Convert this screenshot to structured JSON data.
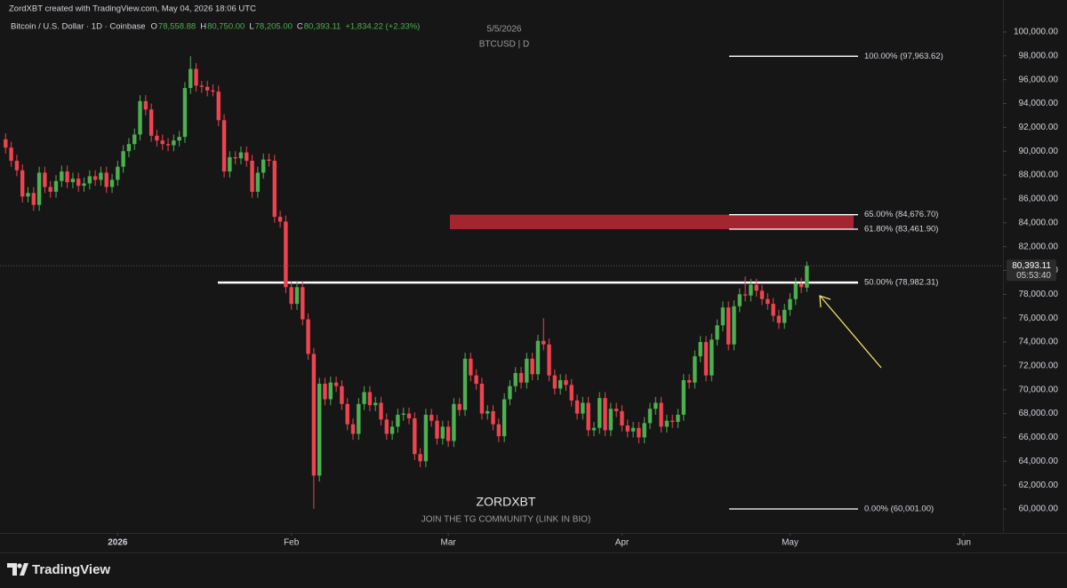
{
  "header": {
    "attribution": "ZordXBT created with TradingView.com, May 04, 2026 18:06 UTC",
    "symbol": "Bitcoin / U.S. Dollar · 1D · Coinbase",
    "ohlc": [
      {
        "key": "O",
        "value": "78,558.88"
      },
      {
        "key": "H",
        "value": "80,750.00"
      },
      {
        "key": "L",
        "value": "78,205.00"
      },
      {
        "key": "C",
        "value": "80,393.11"
      }
    ],
    "change": "+1,834.22 (+2.33%)"
  },
  "watermark": {
    "date": "5/5/2026",
    "symbol": "BTCUSD | D",
    "brand": "ZORDXBT",
    "note": "JOIN THE TG COMMUNITY (LINK IN BIO)"
  },
  "footer": {
    "logo": "TradingView"
  },
  "chart_data": {
    "type": "candlestick",
    "up_color": "#4caf50",
    "down_color": "#ef4350",
    "open": [
      91000,
      90300,
      89200,
      88400,
      86200,
      86500,
      85500,
      88200,
      87000,
      86600,
      87500,
      88300,
      87400,
      87700,
      87100,
      87300,
      87900,
      87600,
      88200,
      87000,
      87600,
      88700,
      90000,
      90600,
      91400,
      94200,
      93500,
      91300,
      90900,
      90600,
      90500,
      90900,
      91200,
      95300,
      96900,
      95500,
      95400,
      95100,
      95000,
      92600,
      88300,
      89500,
      89400,
      89900,
      89200,
      86600,
      88200,
      89300,
      89200,
      84500,
      84100,
      78600,
      77200,
      78600,
      75900,
      73000,
      62800,
      70500,
      69200,
      70600,
      70300,
      68800,
      67100,
      66300,
      68800,
      69800,
      68700,
      68900,
      67500,
      66300,
      66900,
      67900,
      68000,
      67600,
      64600,
      64000,
      67900,
      67400,
      65900,
      66900,
      65700,
      68800,
      68300,
      72600,
      71200,
      70500,
      68000,
      68200,
      67100,
      66100,
      69200,
      70300,
      71400,
      70600,
      72600,
      71300,
      74100,
      73800,
      71200,
      70100,
      70800,
      70400,
      69100,
      68000,
      68900,
      66600,
      66800,
      69300,
      66600,
      68400,
      68200,
      67000,
      66500,
      66800,
      66000,
      67200,
      68400,
      68900,
      66900,
      67400,
      67300,
      67900,
      70800,
      70600,
      72800,
      74000,
      71200,
      74200,
      75400,
      76900,
      73800,
      77000,
      78000,
      77900,
      78800,
      78300,
      77600,
      77200,
      76200,
      75600,
      76700,
      77600,
      78900,
      78558.88
    ],
    "high": [
      91500,
      90800,
      89700,
      88900,
      87000,
      87000,
      88700,
      88700,
      87500,
      88000,
      88800,
      88800,
      88200,
      88200,
      87800,
      88400,
      88400,
      88700,
      88700,
      88100,
      89200,
      90500,
      91100,
      91900,
      94700,
      94700,
      94000,
      91800,
      91400,
      91100,
      91400,
      91700,
      95800,
      97963.62,
      97400,
      95900,
      95900,
      95600,
      95500,
      93100,
      90000,
      90000,
      90400,
      90400,
      89700,
      88700,
      89800,
      89800,
      89700,
      85000,
      84600,
      79100,
      79100,
      79100,
      76400,
      73500,
      71000,
      71000,
      71100,
      71100,
      70800,
      69300,
      67600,
      69300,
      70300,
      70300,
      69400,
      69400,
      68000,
      67400,
      68400,
      68500,
      68500,
      68100,
      65100,
      68400,
      68400,
      67900,
      67400,
      67400,
      69300,
      69300,
      73100,
      73100,
      71700,
      71000,
      68700,
      68700,
      67600,
      69700,
      70800,
      71900,
      71900,
      73100,
      73100,
      74600,
      76000,
      74300,
      71700,
      71300,
      71300,
      70900,
      69600,
      69400,
      69400,
      67300,
      69800,
      69800,
      68900,
      68900,
      68700,
      67500,
      67300,
      67300,
      67700,
      68900,
      69400,
      69400,
      67900,
      67900,
      68400,
      71300,
      71300,
      73300,
      74500,
      74500,
      74700,
      75900,
      77400,
      77400,
      77500,
      78500,
      79500,
      79300,
      79300,
      78800,
      78100,
      77700,
      76700,
      77200,
      78100,
      79400,
      79400,
      80750
    ],
    "low": [
      89800,
      88700,
      87900,
      85700,
      85700,
      85000,
      85000,
      86500,
      86100,
      86100,
      87000,
      86900,
      86900,
      86600,
      86600,
      86800,
      87100,
      87100,
      86500,
      86500,
      87100,
      88200,
      89500,
      90100,
      90900,
      93000,
      90800,
      90400,
      90100,
      90000,
      90000,
      90400,
      90700,
      94800,
      95000,
      94900,
      94600,
      94600,
      92100,
      87800,
      87800,
      88900,
      88900,
      88700,
      86100,
      86100,
      87700,
      88700,
      84000,
      83600,
      78100,
      76700,
      76700,
      75400,
      72500,
      60001,
      62300,
      68700,
      68700,
      69800,
      68300,
      66600,
      65800,
      65800,
      68300,
      68200,
      68200,
      67000,
      65800,
      65800,
      66400,
      67400,
      67100,
      64100,
      63500,
      63500,
      66900,
      65400,
      65400,
      65200,
      65200,
      67800,
      67800,
      70700,
      70000,
      67500,
      67500,
      66600,
      65600,
      65600,
      68700,
      69800,
      70100,
      70100,
      70800,
      70800,
      73300,
      70700,
      69600,
      69600,
      69900,
      68600,
      67500,
      67500,
      66100,
      66100,
      66300,
      66100,
      66100,
      67700,
      66500,
      66000,
      66000,
      65500,
      65500,
      66700,
      67900,
      66400,
      66400,
      66800,
      66800,
      67400,
      70100,
      70100,
      72300,
      70700,
      70700,
      73700,
      74900,
      73300,
      73300,
      76500,
      77400,
      77400,
      77800,
      77100,
      76700,
      75700,
      75100,
      75100,
      76200,
      77100,
      78100,
      78205
    ],
    "close": [
      90300,
      89200,
      88400,
      86200,
      86500,
      85500,
      88200,
      87000,
      86600,
      87500,
      88300,
      87400,
      87700,
      87100,
      87300,
      87900,
      87600,
      88200,
      87000,
      87600,
      88700,
      90000,
      90600,
      91400,
      94200,
      93500,
      91300,
      90900,
      90600,
      90500,
      90900,
      91200,
      95300,
      96900,
      95500,
      95400,
      95100,
      95000,
      92600,
      88300,
      89500,
      89400,
      89900,
      89200,
      86600,
      88200,
      89300,
      89200,
      84500,
      84100,
      78600,
      77200,
      78600,
      75900,
      73000,
      62800,
      70500,
      69200,
      70600,
      70300,
      68800,
      67100,
      66300,
      68800,
      69800,
      68700,
      68900,
      67500,
      66300,
      66900,
      67900,
      68000,
      67600,
      64600,
      64000,
      67900,
      67400,
      65900,
      66900,
      65700,
      68800,
      68300,
      72600,
      71200,
      70500,
      68000,
      68200,
      67100,
      66100,
      69200,
      70300,
      71400,
      70600,
      72600,
      71300,
      74100,
      73800,
      71200,
      70100,
      70800,
      70400,
      69100,
      68000,
      68900,
      66600,
      66800,
      69300,
      66600,
      68400,
      68200,
      67000,
      66500,
      66800,
      66000,
      67200,
      68400,
      68900,
      66900,
      67400,
      67300,
      67900,
      70800,
      70600,
      72800,
      74000,
      71200,
      74200,
      75400,
      76900,
      73800,
      77000,
      78000,
      77900,
      78800,
      78300,
      77600,
      77200,
      76200,
      75600,
      76700,
      77600,
      78900,
      78600,
      80393.11
    ],
    "xlim": [
      -1,
      178
    ],
    "xticks": [
      {
        "value": 20,
        "label": "2026"
      },
      {
        "value": 51,
        "label": "Feb"
      },
      {
        "value": 79,
        "label": "Mar"
      },
      {
        "value": 110,
        "label": "Apr"
      },
      {
        "value": 140,
        "label": "May"
      },
      {
        "value": 171,
        "label": "Jun"
      }
    ],
    "ylim": [
      57990,
      102680
    ],
    "yticks": [
      {
        "value": 60000,
        "label": "60,000.00"
      },
      {
        "value": 62000,
        "label": "62,000.00"
      },
      {
        "value": 64000,
        "label": "64,000.00"
      },
      {
        "value": 66000,
        "label": "66,000.00"
      },
      {
        "value": 68000,
        "label": "68,000.00"
      },
      {
        "value": 70000,
        "label": "70,000.00"
      },
      {
        "value": 72000,
        "label": "72,000.00"
      },
      {
        "value": 74000,
        "label": "74,000.00"
      },
      {
        "value": 76000,
        "label": "76,000.00"
      },
      {
        "value": 78000,
        "label": "78,000.00"
      },
      {
        "value": 80000,
        "label": "80,000.00"
      },
      {
        "value": 82000,
        "label": "82,000.00"
      },
      {
        "value": 84000,
        "label": "84,000.00"
      },
      {
        "value": 86000,
        "label": "86,000.00"
      },
      {
        "value": 88000,
        "label": "88,000.00"
      },
      {
        "value": 90000,
        "label": "90,000.00"
      },
      {
        "value": 92000,
        "label": "92,000.00"
      },
      {
        "value": 94000,
        "label": "94,000.00"
      },
      {
        "value": 96000,
        "label": "96,000.00"
      },
      {
        "value": 98000,
        "label": "98,000.00"
      },
      {
        "value": 100000,
        "label": "100,000.00"
      }
    ],
    "last_price": {
      "label": "80,393.11",
      "countdown": "05:53:40"
    },
    "fib_levels": [
      {
        "label": "100.00% (97,963.62)",
        "value": 97963.62
      },
      {
        "label": "65.00% (84,676.70)",
        "value": 84676.7
      },
      {
        "label": "61.80% (83,461.90)",
        "value": 83461.9
      },
      {
        "label": "50.00% (78,982.31)",
        "value": 78982.31
      },
      {
        "label": "0.00% (60,001.00)",
        "value": 60001
      }
    ],
    "zone_color": "#a3252f"
  }
}
